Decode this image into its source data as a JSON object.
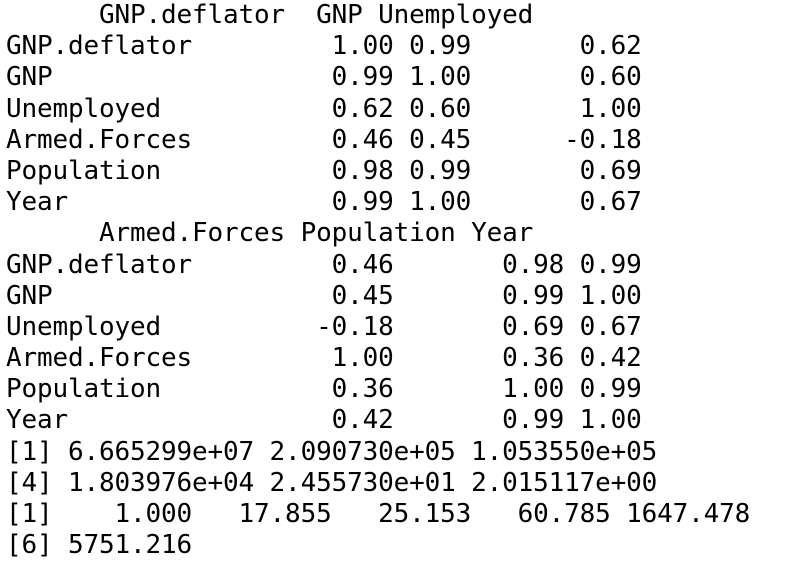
{
  "console": {
    "lines": [
      "      GNP.deflator  GNP Unemployed",
      "GNP.deflator         1.00 0.99       0.62",
      "GNP                  0.99 1.00       0.60",
      "Unemployed           0.62 0.60       1.00",
      "Armed.Forces         0.46 0.45      -0.18",
      "Population           0.98 0.99       0.69",
      "Year                 0.99 1.00       0.67",
      "      Armed.Forces Population Year",
      "GNP.deflator         0.46       0.98 0.99",
      "GNP                  0.45       0.99 1.00",
      "Unemployed          -0.18       0.69 0.67",
      "Armed.Forces         1.00       0.36 0.42",
      "Population           0.36       1.00 0.99",
      "Year                 0.42       0.99 1.00",
      "[1] 6.665299e+07 2.090730e+05 1.053550e+05",
      "[4] 1.803976e+04 2.455730e+01 2.015117e+00",
      "[1]    1.000   17.855   25.153   60.785 1647.478",
      "[6] 5751.216"
    ]
  }
}
